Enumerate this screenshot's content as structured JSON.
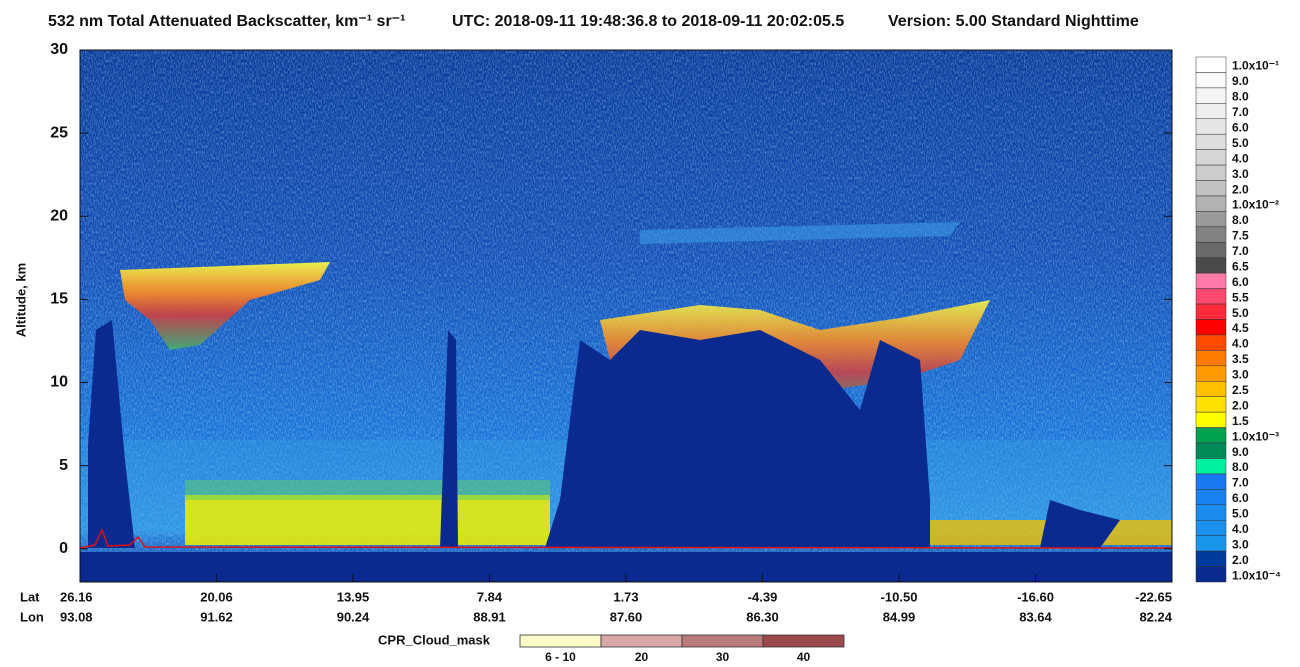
{
  "chart_data": {
    "type": "heatmap",
    "title": "532 nm Total Attenuated Backscatter, km⁻¹ sr⁻¹",
    "subtitle": "UTC:  2018-09-11 19:48:36.8  to  2018-09-11 20:02:05.5",
    "version": "Version: 5.00  Standard  Nighttime",
    "y_label": "Altitude, km",
    "ylim": [
      -2,
      30
    ],
    "yticks": [
      0,
      5,
      10,
      15,
      20,
      25,
      30
    ],
    "x_rows": [
      {
        "name": "Lat",
        "labels": [
          "26.16",
          "20.06",
          "13.95",
          "7.84",
          "1.73",
          "-4.39",
          "-10.50",
          "-16.60",
          "-22.65"
        ]
      },
      {
        "name": "Lon",
        "labels": [
          "93.08",
          "91.62",
          "90.24",
          "88.91",
          "87.60",
          "86.30",
          "84.99",
          "83.64",
          "82.24"
        ]
      }
    ],
    "colorbar": {
      "labels": [
        "1.0x10⁻¹",
        "9.0",
        "8.0",
        "7.0",
        "6.0",
        "5.0",
        "4.0",
        "3.0",
        "2.0",
        "1.0x10⁻²",
        "8.0",
        "7.5",
        "7.0",
        "6.5",
        "6.0",
        "5.5",
        "5.0",
        "4.5",
        "4.0",
        "3.5",
        "3.0",
        "2.5",
        "2.0",
        "1.5",
        "1.0x10⁻³",
        "9.0",
        "8.0",
        "7.0",
        "6.0",
        "5.0",
        "4.0",
        "3.0",
        "2.0",
        "1.0x10⁻⁴"
      ],
      "colors": [
        "#ffffff",
        "#fafafa",
        "#f4f4f4",
        "#eeeeee",
        "#e6e6e6",
        "#dedede",
        "#d6d6d6",
        "#cccccc",
        "#c2c2c2",
        "#b2b2b2",
        "#9a9a9a",
        "#828282",
        "#6a6a6a",
        "#4a4a4a",
        "#ff7aa8",
        "#ff4a70",
        "#ff2a3a",
        "#ff0000",
        "#ff4a00",
        "#ff7a00",
        "#ff9a00",
        "#ffc000",
        "#ffe000",
        "#ffff00",
        "#00a050",
        "#008a5a",
        "#00f0a0",
        "#1a78f0",
        "#1a82f0",
        "#1a8cf0",
        "#1a90ee",
        "#1a96ec",
        "#003a9a",
        "#0a2a90"
      ]
    },
    "cpr_legend": {
      "title": "CPR_Cloud_mask",
      "labels": [
        "6 - 10",
        "20",
        "30",
        "40"
      ],
      "colors": [
        "#fdfbc8",
        "#d8a8a8",
        "#b87a7a",
        "#9a4a4a"
      ]
    }
  }
}
